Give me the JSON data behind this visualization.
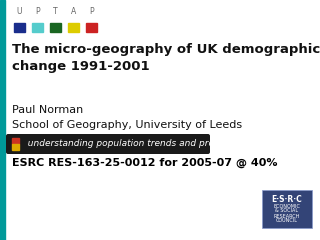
{
  "bg_color": "#ffffff",
  "left_bar_color": "#009999",
  "title": "The micro-geography of UK demographic\nchange 1991-2001",
  "author": "Paul Norman",
  "institution": "School of Geography, University of Leeds",
  "uptap_letters": [
    "U",
    "P",
    "T",
    "A",
    "P"
  ],
  "uptap_colors": [
    "#1a2d8c",
    "#55cccc",
    "#1a6622",
    "#ddcc00",
    "#cc2222"
  ],
  "banner_text": "  understanding population trends and processes",
  "banner_bg": "#1a1a1a",
  "banner_text_color": "#ffffff",
  "esrc_text": "ESRC RES-163-25-0012 for 2005-07 @ 40%",
  "esrc_text_color": "#000000",
  "banner_icon_color1": "#cc3322",
  "banner_icon_color2": "#ddaa00",
  "esrc_box_color": "#334477",
  "title_fontsize": 9.5,
  "author_fontsize": 8,
  "esrc_fontsize": 8,
  "banner_fontsize": 6.5,
  "uptap_letter_fontsize": 5.5
}
